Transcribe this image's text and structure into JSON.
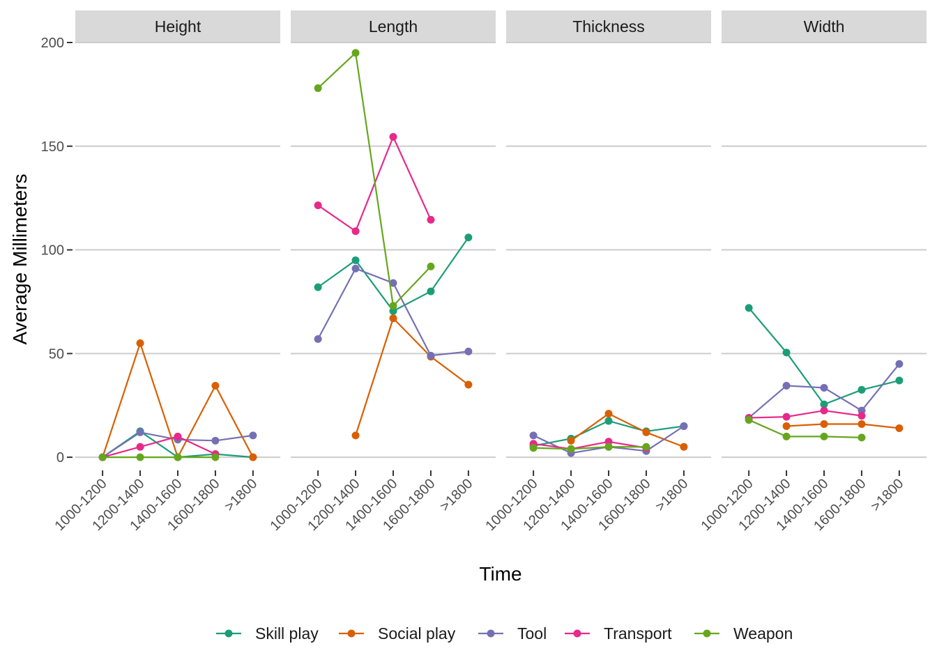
{
  "chart_data": {
    "type": "line",
    "facet_by": "dimension",
    "xlabel": "Time",
    "ylabel": "Average Millimeters",
    "ylim": [
      -5,
      200
    ],
    "y_ticks": [
      0,
      50,
      100,
      150,
      200
    ],
    "categories": [
      "1000-1200",
      "1200-1400",
      "1400-1600",
      "1600-1800",
      ">1800"
    ],
    "grid": true,
    "legend_position": "bottom",
    "colors": {
      "Skill play": "#1b9e77",
      "Social play": "#d95f02",
      "Tool": "#7570b3",
      "Transport": "#e7298a",
      "Weapon": "#66a61e"
    },
    "legend": [
      "Skill play",
      "Social play",
      "Tool",
      "Transport",
      "Weapon"
    ],
    "panels": [
      {
        "name": "Height",
        "series": [
          {
            "name": "Skill play",
            "values": [
              0,
              12.5,
              0,
              1.5,
              0
            ]
          },
          {
            "name": "Social play",
            "values": [
              0,
              55,
              0,
              34.5,
              0
            ]
          },
          {
            "name": "Tool",
            "values": [
              0,
              12,
              8.5,
              8,
              10.5
            ]
          },
          {
            "name": "Transport",
            "values": [
              0,
              5,
              10,
              1.5,
              null
            ]
          },
          {
            "name": "Weapon",
            "values": [
              0,
              0,
              0,
              0,
              null
            ]
          }
        ]
      },
      {
        "name": "Length",
        "series": [
          {
            "name": "Skill play",
            "values": [
              82,
              95,
              70.5,
              80,
              106
            ]
          },
          {
            "name": "Social play",
            "values": [
              null,
              10.5,
              67,
              48.5,
              35
            ]
          },
          {
            "name": "Tool",
            "values": [
              57,
              91,
              84,
              49,
              51
            ]
          },
          {
            "name": "Transport",
            "values": [
              121.5,
              109,
              154.5,
              114.5,
              null
            ]
          },
          {
            "name": "Weapon",
            "values": [
              178,
              195,
              73,
              92,
              null
            ]
          }
        ]
      },
      {
        "name": "Thickness",
        "series": [
          {
            "name": "Skill play",
            "values": [
              5.5,
              9,
              17.5,
              12.5,
              15
            ]
          },
          {
            "name": "Social play",
            "values": [
              null,
              8,
              21,
              12,
              5
            ]
          },
          {
            "name": "Tool",
            "values": [
              10.5,
              2,
              5,
              3,
              15
            ]
          },
          {
            "name": "Transport",
            "values": [
              6.5,
              4,
              7.5,
              4.5,
              null
            ]
          },
          {
            "name": "Weapon",
            "values": [
              4.5,
              4,
              5,
              5,
              null
            ]
          }
        ]
      },
      {
        "name": "Width",
        "series": [
          {
            "name": "Skill play",
            "values": [
              72,
              50.5,
              25.5,
              32.5,
              37
            ]
          },
          {
            "name": "Social play",
            "values": [
              null,
              15,
              16,
              16,
              14
            ]
          },
          {
            "name": "Tool",
            "values": [
              19,
              34.5,
              33.5,
              22.5,
              45
            ]
          },
          {
            "name": "Transport",
            "values": [
              19,
              19.5,
              22.5,
              20,
              null
            ]
          },
          {
            "name": "Weapon",
            "values": [
              18,
              10,
              10,
              9.5,
              null
            ]
          }
        ]
      }
    ]
  }
}
